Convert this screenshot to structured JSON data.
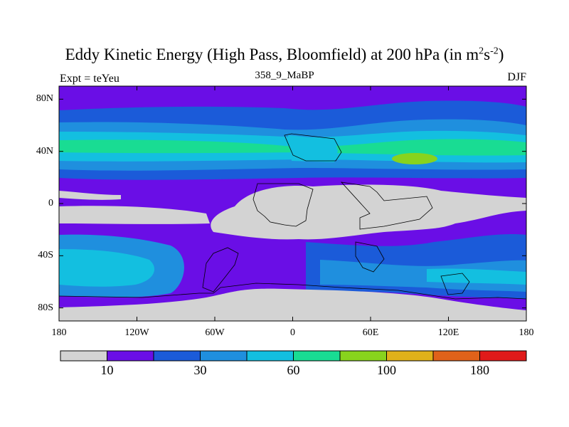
{
  "title": {
    "main": "Eddy Kinetic Energy (High Pass, Bloomfield) at 200 hPa (in m",
    "sup1": "2",
    "s": "s",
    "sup2": "-2",
    "close": ")"
  },
  "subtitle": "358_9_MaBP",
  "left_label": "Expt = teYeu",
  "right_label": "DJF",
  "lat_ticks": [
    "80N",
    "40N",
    "0",
    "40S",
    "80S"
  ],
  "lon_ticks": [
    "180",
    "120W",
    "60W",
    "0",
    "60E",
    "120E",
    "180"
  ],
  "colorbar": {
    "colors": [
      "#d3d3d3",
      "#6a0ee6",
      "#1b5bd9",
      "#1f8fde",
      "#13bfe0",
      "#19dc93",
      "#88d31d",
      "#e0b11a",
      "#e0621a",
      "#e01a1a"
    ],
    "labels": [
      "10",
      "30",
      "60",
      "100",
      "180"
    ]
  },
  "field_colors": {
    "grey": "#d3d3d3",
    "purple": "#6a0ee6",
    "blue": "#1b5bd9",
    "mid": "#1f8fde",
    "cyan": "#13bfe0",
    "green": "#19dc93",
    "lime": "#88d31d"
  }
}
